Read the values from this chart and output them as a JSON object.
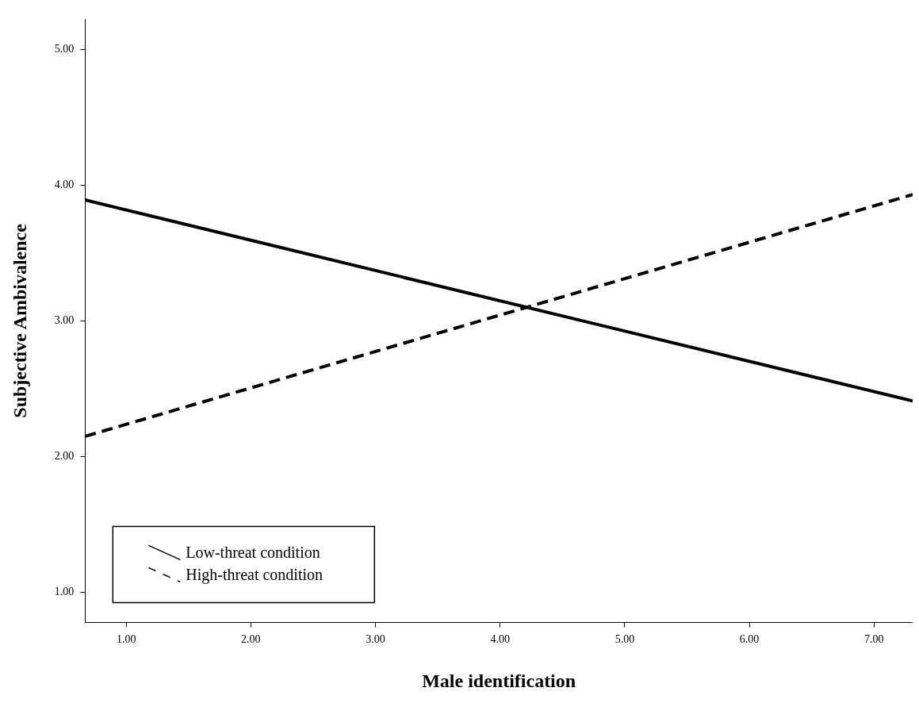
{
  "chart_data": {
    "type": "line",
    "xlabel": "Male identification",
    "ylabel": "Subjective Ambivalence",
    "x": [
      0.67,
      7.31
    ],
    "series": [
      {
        "name": "Low-threat condition",
        "color": "#000000",
        "values": [
          3.89,
          2.41
        ],
        "line_style": "solid"
      },
      {
        "name": "High-threat condition",
        "color": "#000000",
        "values": [
          2.15,
          3.93
        ],
        "line_style": "dashed"
      }
    ],
    "xlim": [
      0.67,
      7.31
    ],
    "xticks": [
      {
        "value": 1,
        "label": "1.00"
      },
      {
        "value": 2,
        "label": "2.00"
      },
      {
        "value": 3,
        "label": "3.00"
      },
      {
        "value": 4,
        "label": "4.00"
      },
      {
        "value": 5,
        "label": "5.00"
      },
      {
        "value": 6,
        "label": "6.00"
      },
      {
        "value": 7,
        "label": "7.00"
      }
    ],
    "ylim": [
      0.78,
      5.22
    ],
    "yticks": [
      {
        "value": 1,
        "label": "1.00"
      },
      {
        "value": 2,
        "label": "2.00"
      },
      {
        "value": 3,
        "label": "3.00"
      },
      {
        "value": 4,
        "label": "4.00"
      },
      {
        "value": 5,
        "label": "5.00"
      }
    ],
    "grid": false,
    "legend": "bottom left",
    "marker": "none"
  }
}
